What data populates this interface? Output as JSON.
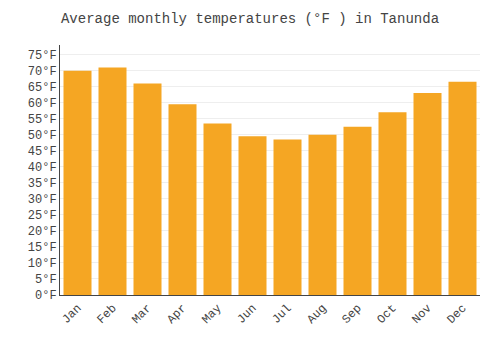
{
  "chart_data": {
    "type": "bar",
    "title": "Average monthly temperatures (°F ) in Tanunda",
    "categories": [
      "Jan",
      "Feb",
      "Mar",
      "Apr",
      "May",
      "Jun",
      "Jul",
      "Aug",
      "Sep",
      "Oct",
      "Nov",
      "Dec"
    ],
    "values": [
      70,
      71,
      66,
      59.5,
      53.5,
      49.5,
      48.5,
      50,
      52.5,
      57,
      63,
      66.5
    ],
    "color": "#F5A623",
    "ylim": [
      0,
      78
    ],
    "yticks": [
      {
        "value": 0,
        "label": "0°F"
      },
      {
        "value": 5,
        "label": "5°F"
      },
      {
        "value": 10,
        "label": "10°F"
      },
      {
        "value": 15,
        "label": "15°F"
      },
      {
        "value": 20,
        "label": "20°F"
      },
      {
        "value": 25,
        "label": "25°F"
      },
      {
        "value": 30,
        "label": "30°F"
      },
      {
        "value": 35,
        "label": "35°F"
      },
      {
        "value": 40,
        "label": "40°F"
      },
      {
        "value": 45,
        "label": "45°F"
      },
      {
        "value": 50,
        "label": "50°F"
      },
      {
        "value": 55,
        "label": "55°F"
      },
      {
        "value": 60,
        "label": "60°F"
      },
      {
        "value": 65,
        "label": "65°F"
      },
      {
        "value": 70,
        "label": "70°F"
      },
      {
        "value": 75,
        "label": "75°F"
      }
    ],
    "grid": true
  }
}
